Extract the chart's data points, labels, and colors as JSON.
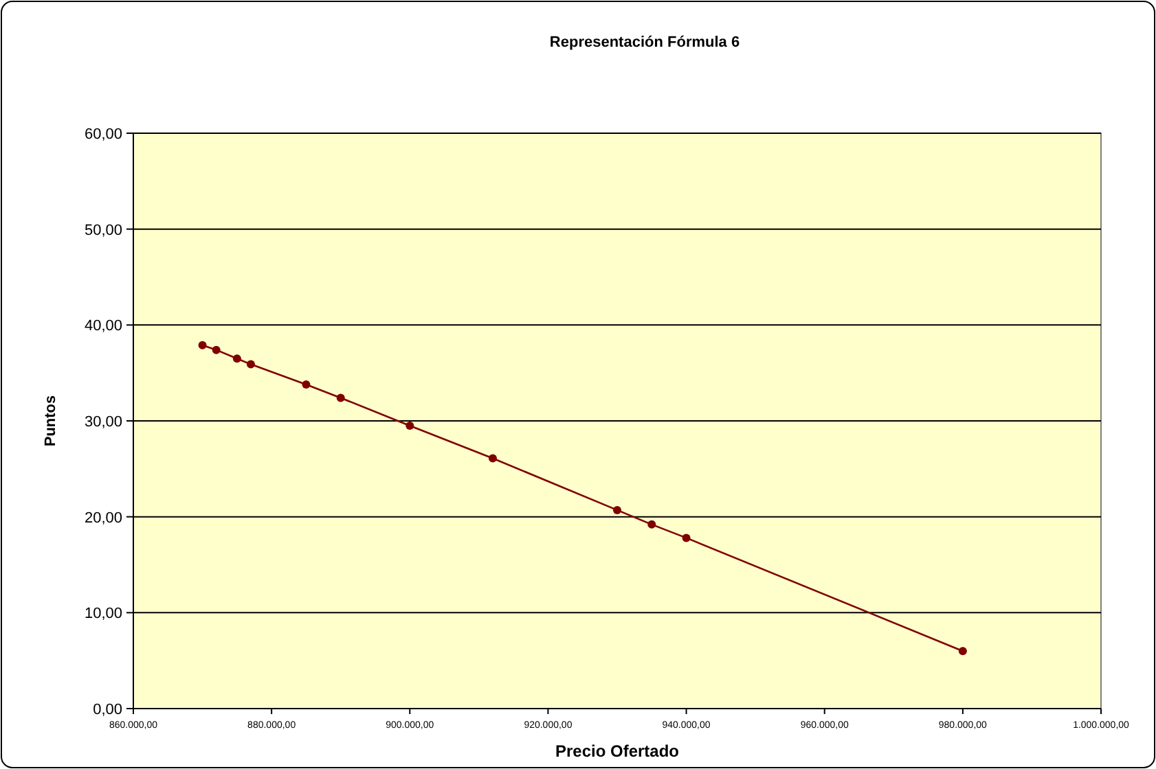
{
  "chart_data": {
    "type": "line",
    "title": "Representación Fórmula 6",
    "xlabel": "Precio Ofertado",
    "ylabel": "Puntos",
    "x": [
      870000,
      872000,
      875000,
      877000,
      885000,
      890000,
      900000,
      912000,
      930000,
      935000,
      940000,
      980000
    ],
    "series": [
      {
        "color": "#800000",
        "values": [
          37.9,
          37.4,
          36.5,
          35.9,
          33.8,
          32.4,
          29.5,
          26.1,
          20.7,
          19.2,
          17.8,
          6.0
        ]
      }
    ],
    "xlim": [
      860000,
      1000000
    ],
    "xticks": [
      {
        "value": 860000,
        "label": "860.000,00"
      },
      {
        "value": 880000,
        "label": "880.000,00"
      },
      {
        "value": 900000,
        "label": "900.000,00"
      },
      {
        "value": 920000,
        "label": "920.000,00"
      },
      {
        "value": 940000,
        "label": "940.000,00"
      },
      {
        "value": 960000,
        "label": "960.000,00"
      },
      {
        "value": 980000,
        "label": "980.000,00"
      },
      {
        "value": 1000000,
        "label": "1.000.000,00"
      }
    ],
    "ylim": [
      0,
      60
    ],
    "yticks": [
      {
        "value": 0,
        "label": "0,00"
      },
      {
        "value": 10,
        "label": "10,00"
      },
      {
        "value": 20,
        "label": "20,00"
      },
      {
        "value": 30,
        "label": "30,00"
      },
      {
        "value": 40,
        "label": "40,00"
      },
      {
        "value": 50,
        "label": "50,00"
      },
      {
        "value": 60,
        "label": "60,00"
      }
    ],
    "grid": "y",
    "marker": "circle",
    "line_style": "solid"
  }
}
